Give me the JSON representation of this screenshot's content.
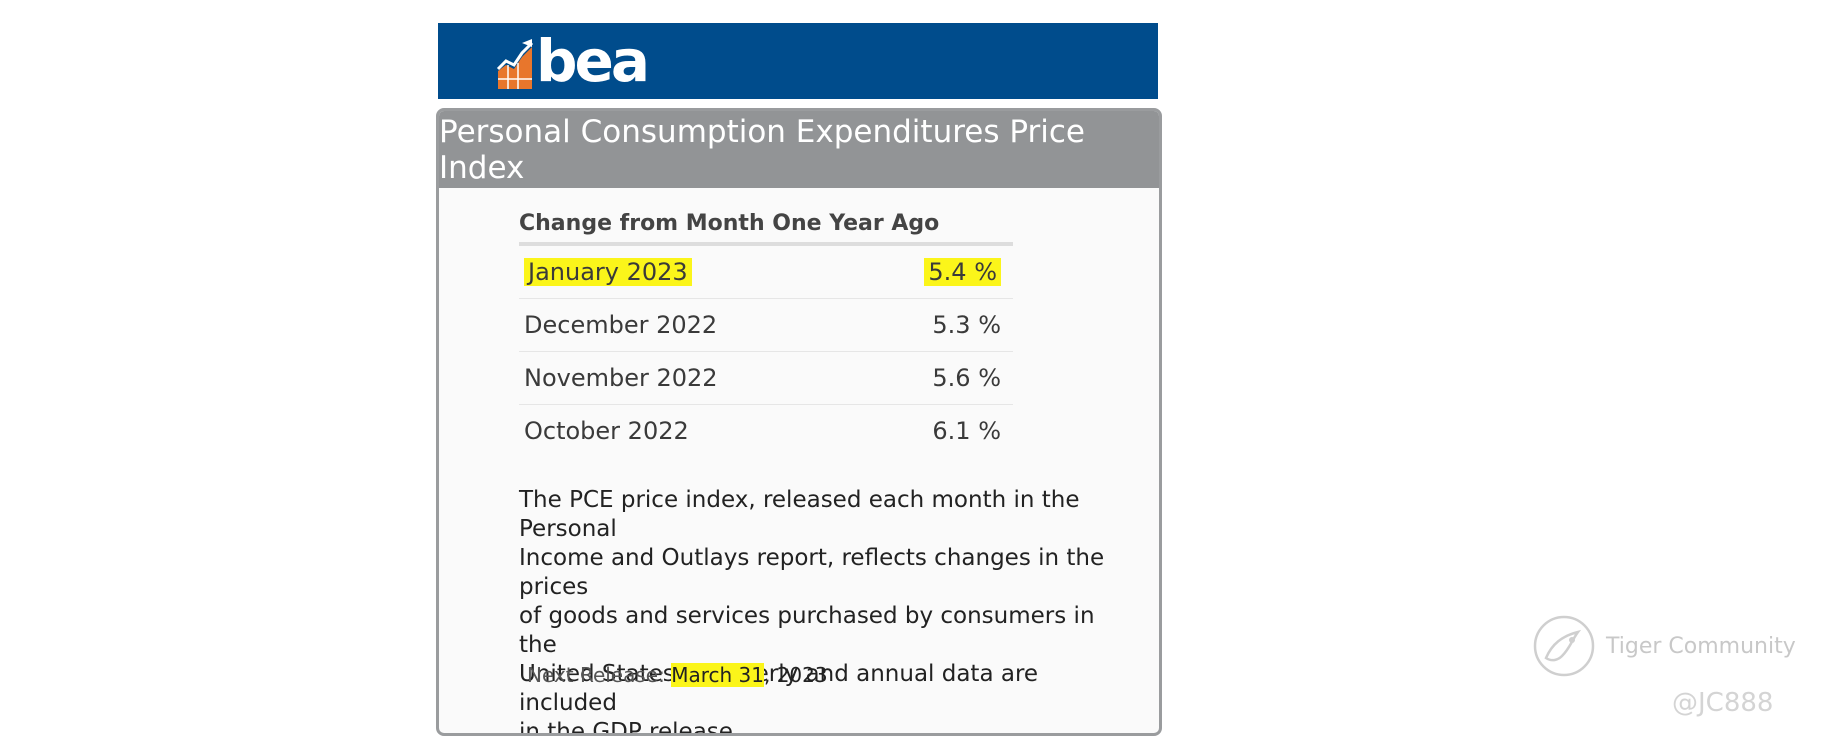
{
  "header": {
    "logo_text": "bea"
  },
  "card": {
    "title": "Personal Consumption Expenditures Price Index",
    "table_title": "Change from Month One Year Ago",
    "rows": [
      {
        "month": "January 2023",
        "value": "5.4 %"
      },
      {
        "month": "December 2022",
        "value": "5.3 %"
      },
      {
        "month": "November 2022",
        "value": "5.6 %"
      },
      {
        "month": "October 2022",
        "value": "6.1 %"
      }
    ],
    "description_lines": [
      "The PCE price index, released each month in the Personal",
      "Income and Outlays  report, reflects changes in the prices",
      "of goods and services purchased by consumers in the",
      "United States. Quarterly and annual data  are included",
      "in the GDP release."
    ],
    "next_release": {
      "label": "Next Release: ",
      "date_highlighted": "March 31",
      "date_rest": ", 2023"
    }
  },
  "watermark": {
    "brand": "Tiger Community",
    "user": "@JC888"
  },
  "colors": {
    "bea_blue": "#004c8c",
    "card_header_gray": "#929496",
    "highlight": "#fbf51a",
    "logo_orange": "#e8762c"
  }
}
